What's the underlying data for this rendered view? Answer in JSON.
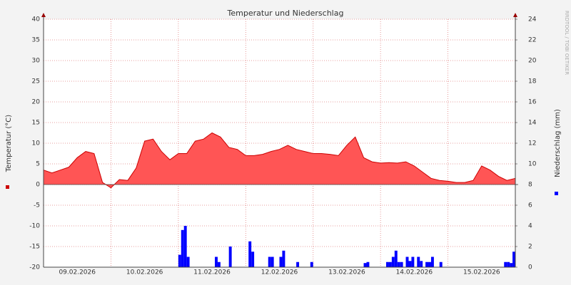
{
  "chart_data": {
    "type": "combo",
    "title": "Temperatur und Niederschlag",
    "ylabel": "Temperatur (°C)",
    "y2label": "Niederschlag (mm)",
    "watermark": "RRDTOOL / TOBI OETIKER",
    "xlim": [
      0,
      168
    ],
    "xticks": [
      {
        "value": 12,
        "label": "09.02.2026"
      },
      {
        "value": 36,
        "label": "10.02.2026"
      },
      {
        "value": 60,
        "label": "11.02.2026"
      },
      {
        "value": 84,
        "label": "12.02.2026"
      },
      {
        "value": 108,
        "label": "13.02.2026"
      },
      {
        "value": 132,
        "label": "14.02.2026"
      },
      {
        "value": 156,
        "label": "15.02.2026"
      }
    ],
    "ylim": [
      -20,
      40
    ],
    "yticks": [
      -20,
      -15,
      -10,
      -5,
      0,
      5,
      10,
      15,
      20,
      25,
      30,
      35,
      40
    ],
    "y2lim": [
      0,
      24
    ],
    "y2ticks": [
      0,
      2,
      4,
      6,
      8,
      10,
      12,
      14,
      16,
      18,
      20,
      22,
      24
    ],
    "grid": true,
    "series": [
      {
        "name": "Temperatur",
        "type": "area",
        "color": "#ff5555",
        "line_color": "#cc0000",
        "x": [
          0,
          3,
          6,
          9,
          12,
          15,
          18,
          21,
          24,
          27,
          30,
          33,
          36,
          39,
          42,
          45,
          48,
          51,
          54,
          57,
          60,
          63,
          66,
          69,
          72,
          75,
          78,
          81,
          84,
          87,
          90,
          93,
          96,
          99,
          102,
          105,
          108,
          111,
          114,
          117,
          120,
          123,
          126,
          129,
          132,
          135,
          138,
          141,
          144,
          147,
          150,
          153,
          156,
          159,
          162,
          165,
          168
        ],
        "values": [
          3.5,
          2.8,
          3.5,
          4.2,
          6.5,
          8.0,
          7.5,
          0.5,
          -0.8,
          1.2,
          1.0,
          4,
          10.5,
          11,
          8,
          6,
          7.5,
          7.5,
          10.5,
          11,
          12.5,
          11.5,
          9,
          8.5,
          7,
          7,
          7.3,
          8,
          8.5,
          9.5,
          8.5,
          8,
          7.5,
          7.5,
          7.3,
          7,
          9.5,
          11.5,
          6.5,
          5.5,
          5.2,
          5.3,
          5.2,
          5.5,
          4.5,
          3,
          1.5,
          1,
          0.8,
          0.5,
          0.5,
          1.0,
          4.5,
          3.5,
          2,
          1,
          1.5
        ]
      },
      {
        "name": "Niederschlag",
        "type": "bar",
        "axis": "y2",
        "color": "#0000ff",
        "x": [
          48,
          49,
          50,
          51,
          61,
          62,
          66,
          73,
          74,
          80,
          81,
          84,
          85,
          90,
          95,
          114,
          115,
          122,
          123,
          124,
          125,
          126,
          127,
          129,
          130,
          131,
          133,
          134,
          136,
          137,
          138,
          141,
          164,
          165,
          166,
          167
        ],
        "values": [
          1.2,
          3.6,
          4.0,
          1.0,
          1.0,
          0.5,
          2.0,
          2.5,
          1.5,
          1.0,
          1.0,
          1.0,
          1.6,
          0.5,
          0.5,
          0.4,
          0.5,
          0.5,
          0.5,
          1.0,
          1.6,
          0.5,
          0.5,
          1.0,
          0.6,
          1.0,
          1.0,
          0.6,
          0.5,
          0.5,
          1.0,
          0.5,
          0.5,
          0.5,
          0.4,
          1.5
        ]
      }
    ]
  }
}
